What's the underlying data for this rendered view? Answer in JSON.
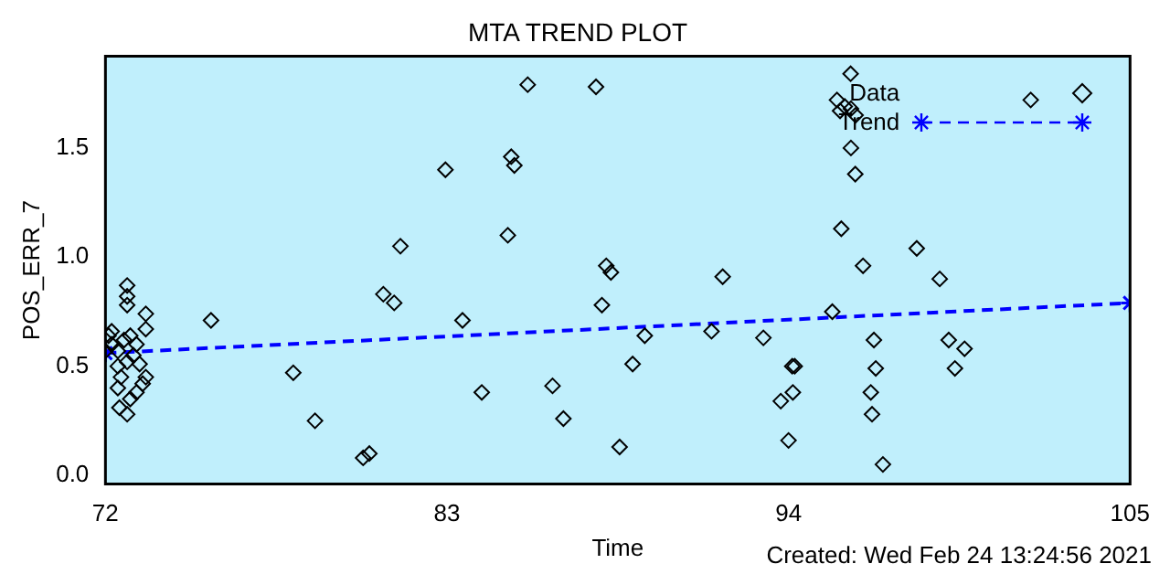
{
  "chart_data": {
    "type": "scatter",
    "title": "MTA TREND PLOT",
    "xlabel": "Time",
    "ylabel": "POS_ERR_7",
    "annotations": [
      "Created: Wed Feb 24 13:24:56 2021"
    ],
    "xlim": [
      72,
      105
    ],
    "xticks": [
      72,
      83,
      94,
      105
    ],
    "ylim": [
      -0.04,
      1.92
    ],
    "yticks": [
      {
        "value": 0,
        "label": "0.0"
      },
      {
        "value": 0.5,
        "label": "0.5"
      },
      {
        "value": 1,
        "label": "1.0"
      },
      {
        "value": 1.5,
        "label": "1.5"
      }
    ],
    "grid": false,
    "legend": "top right",
    "marker": "diamond",
    "series": [
      {
        "name": "Data",
        "type": "scatter",
        "color": "#000000",
        "x": [
          75.4,
          82.95,
          81.5,
          80.95,
          81.3,
          78.05,
          78.75,
          80.3,
          80.5,
          72.7,
          72.7,
          72.7,
          73.3,
          73.3,
          73.3,
          73.2,
          73.0,
          72.8,
          72.45,
          72.7,
          72.4,
          72.5,
          72.1,
          72.2,
          72.4,
          72.7,
          72.9,
          72.6,
          72.2,
          73.0,
          73.1,
          72.0,
          72.4,
          72.8,
          85.6,
          87.8,
          85.07,
          85.17,
          84.96,
          88.13,
          88.28,
          91.88,
          87.99,
          83.5,
          89.37,
          91.52,
          93.19,
          88.98,
          84.12,
          86.4,
          86.75,
          88.56,
          94.12,
          93.75,
          94.0,
          96.0,
          101.8,
          95.56,
          95.66,
          95.81,
          96.01,
          96.16,
          96.01,
          96.15,
          95.7,
          98.13,
          96.4,
          98.87,
          95.41,
          96.75,
          99.16,
          99.67,
          94.2,
          96.81,
          99.36,
          94.14,
          96.65,
          96.69,
          97.04
        ],
        "values": [
          0.71,
          1.4,
          1.05,
          0.83,
          0.79,
          0.47,
          0.25,
          0.08,
          0.1,
          0.87,
          0.82,
          0.78,
          0.74,
          0.67,
          0.45,
          0.42,
          0.38,
          0.35,
          0.31,
          0.28,
          0.4,
          0.45,
          0.64,
          0.6,
          0.57,
          0.52,
          0.55,
          0.62,
          0.66,
          0.6,
          0.51,
          0.57,
          0.5,
          0.64,
          1.79,
          1.78,
          1.46,
          1.42,
          1.1,
          0.96,
          0.93,
          0.91,
          0.78,
          0.71,
          0.64,
          0.66,
          0.63,
          0.51,
          0.38,
          0.41,
          0.26,
          0.13,
          0.5,
          0.34,
          0.16,
          1.84,
          1.72,
          1.72,
          1.67,
          1.69,
          1.68,
          1.65,
          1.5,
          1.38,
          1.13,
          1.04,
          0.96,
          0.9,
          0.75,
          0.62,
          0.62,
          0.58,
          0.5,
          0.49,
          0.49,
          0.38,
          0.38,
          0.28,
          0.05
        ]
      },
      {
        "name": "Trend",
        "type": "line",
        "color": "#0000ff",
        "marker": "cross",
        "line_style": "dashed",
        "x": [
          72,
          105
        ],
        "values": [
          0.56,
          0.79
        ]
      }
    ]
  }
}
